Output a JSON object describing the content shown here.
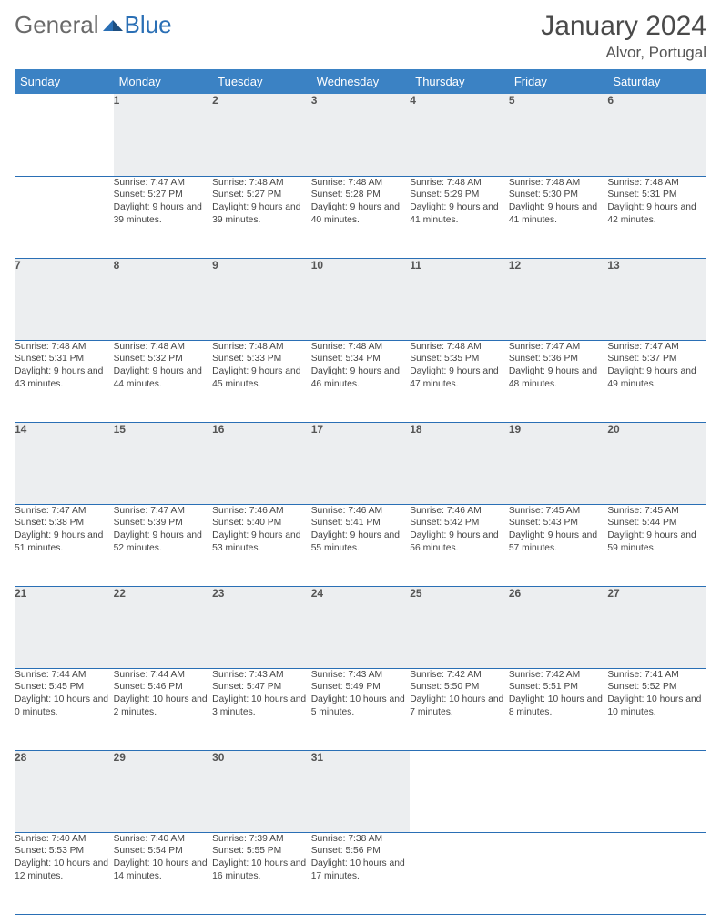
{
  "brand": {
    "part1": "General",
    "part2": "Blue"
  },
  "title": "January 2024",
  "location": "Alvor, Portugal",
  "colors": {
    "header_bg": "#3b82c4",
    "header_text": "#ffffff",
    "border": "#2a6fb5",
    "daynum_bg": "#eceef0",
    "text": "#444444",
    "brand_grey": "#6a6a6a",
    "brand_blue": "#2a6fb5"
  },
  "day_names": [
    "Sunday",
    "Monday",
    "Tuesday",
    "Wednesday",
    "Thursday",
    "Friday",
    "Saturday"
  ],
  "weeks": [
    [
      null,
      {
        "n": "1",
        "sr": "Sunrise: 7:47 AM",
        "ss": "Sunset: 5:27 PM",
        "dl": "Daylight: 9 hours and 39 minutes."
      },
      {
        "n": "2",
        "sr": "Sunrise: 7:48 AM",
        "ss": "Sunset: 5:27 PM",
        "dl": "Daylight: 9 hours and 39 minutes."
      },
      {
        "n": "3",
        "sr": "Sunrise: 7:48 AM",
        "ss": "Sunset: 5:28 PM",
        "dl": "Daylight: 9 hours and 40 minutes."
      },
      {
        "n": "4",
        "sr": "Sunrise: 7:48 AM",
        "ss": "Sunset: 5:29 PM",
        "dl": "Daylight: 9 hours and 41 minutes."
      },
      {
        "n": "5",
        "sr": "Sunrise: 7:48 AM",
        "ss": "Sunset: 5:30 PM",
        "dl": "Daylight: 9 hours and 41 minutes."
      },
      {
        "n": "6",
        "sr": "Sunrise: 7:48 AM",
        "ss": "Sunset: 5:31 PM",
        "dl": "Daylight: 9 hours and 42 minutes."
      }
    ],
    [
      {
        "n": "7",
        "sr": "Sunrise: 7:48 AM",
        "ss": "Sunset: 5:31 PM",
        "dl": "Daylight: 9 hours and 43 minutes."
      },
      {
        "n": "8",
        "sr": "Sunrise: 7:48 AM",
        "ss": "Sunset: 5:32 PM",
        "dl": "Daylight: 9 hours and 44 minutes."
      },
      {
        "n": "9",
        "sr": "Sunrise: 7:48 AM",
        "ss": "Sunset: 5:33 PM",
        "dl": "Daylight: 9 hours and 45 minutes."
      },
      {
        "n": "10",
        "sr": "Sunrise: 7:48 AM",
        "ss": "Sunset: 5:34 PM",
        "dl": "Daylight: 9 hours and 46 minutes."
      },
      {
        "n": "11",
        "sr": "Sunrise: 7:48 AM",
        "ss": "Sunset: 5:35 PM",
        "dl": "Daylight: 9 hours and 47 minutes."
      },
      {
        "n": "12",
        "sr": "Sunrise: 7:47 AM",
        "ss": "Sunset: 5:36 PM",
        "dl": "Daylight: 9 hours and 48 minutes."
      },
      {
        "n": "13",
        "sr": "Sunrise: 7:47 AM",
        "ss": "Sunset: 5:37 PM",
        "dl": "Daylight: 9 hours and 49 minutes."
      }
    ],
    [
      {
        "n": "14",
        "sr": "Sunrise: 7:47 AM",
        "ss": "Sunset: 5:38 PM",
        "dl": "Daylight: 9 hours and 51 minutes."
      },
      {
        "n": "15",
        "sr": "Sunrise: 7:47 AM",
        "ss": "Sunset: 5:39 PM",
        "dl": "Daylight: 9 hours and 52 minutes."
      },
      {
        "n": "16",
        "sr": "Sunrise: 7:46 AM",
        "ss": "Sunset: 5:40 PM",
        "dl": "Daylight: 9 hours and 53 minutes."
      },
      {
        "n": "17",
        "sr": "Sunrise: 7:46 AM",
        "ss": "Sunset: 5:41 PM",
        "dl": "Daylight: 9 hours and 55 minutes."
      },
      {
        "n": "18",
        "sr": "Sunrise: 7:46 AM",
        "ss": "Sunset: 5:42 PM",
        "dl": "Daylight: 9 hours and 56 minutes."
      },
      {
        "n": "19",
        "sr": "Sunrise: 7:45 AM",
        "ss": "Sunset: 5:43 PM",
        "dl": "Daylight: 9 hours and 57 minutes."
      },
      {
        "n": "20",
        "sr": "Sunrise: 7:45 AM",
        "ss": "Sunset: 5:44 PM",
        "dl": "Daylight: 9 hours and 59 minutes."
      }
    ],
    [
      {
        "n": "21",
        "sr": "Sunrise: 7:44 AM",
        "ss": "Sunset: 5:45 PM",
        "dl": "Daylight: 10 hours and 0 minutes."
      },
      {
        "n": "22",
        "sr": "Sunrise: 7:44 AM",
        "ss": "Sunset: 5:46 PM",
        "dl": "Daylight: 10 hours and 2 minutes."
      },
      {
        "n": "23",
        "sr": "Sunrise: 7:43 AM",
        "ss": "Sunset: 5:47 PM",
        "dl": "Daylight: 10 hours and 3 minutes."
      },
      {
        "n": "24",
        "sr": "Sunrise: 7:43 AM",
        "ss": "Sunset: 5:49 PM",
        "dl": "Daylight: 10 hours and 5 minutes."
      },
      {
        "n": "25",
        "sr": "Sunrise: 7:42 AM",
        "ss": "Sunset: 5:50 PM",
        "dl": "Daylight: 10 hours and 7 minutes."
      },
      {
        "n": "26",
        "sr": "Sunrise: 7:42 AM",
        "ss": "Sunset: 5:51 PM",
        "dl": "Daylight: 10 hours and 8 minutes."
      },
      {
        "n": "27",
        "sr": "Sunrise: 7:41 AM",
        "ss": "Sunset: 5:52 PM",
        "dl": "Daylight: 10 hours and 10 minutes."
      }
    ],
    [
      {
        "n": "28",
        "sr": "Sunrise: 7:40 AM",
        "ss": "Sunset: 5:53 PM",
        "dl": "Daylight: 10 hours and 12 minutes."
      },
      {
        "n": "29",
        "sr": "Sunrise: 7:40 AM",
        "ss": "Sunset: 5:54 PM",
        "dl": "Daylight: 10 hours and 14 minutes."
      },
      {
        "n": "30",
        "sr": "Sunrise: 7:39 AM",
        "ss": "Sunset: 5:55 PM",
        "dl": "Daylight: 10 hours and 16 minutes."
      },
      {
        "n": "31",
        "sr": "Sunrise: 7:38 AM",
        "ss": "Sunset: 5:56 PM",
        "dl": "Daylight: 10 hours and 17 minutes."
      },
      null,
      null,
      null
    ]
  ]
}
